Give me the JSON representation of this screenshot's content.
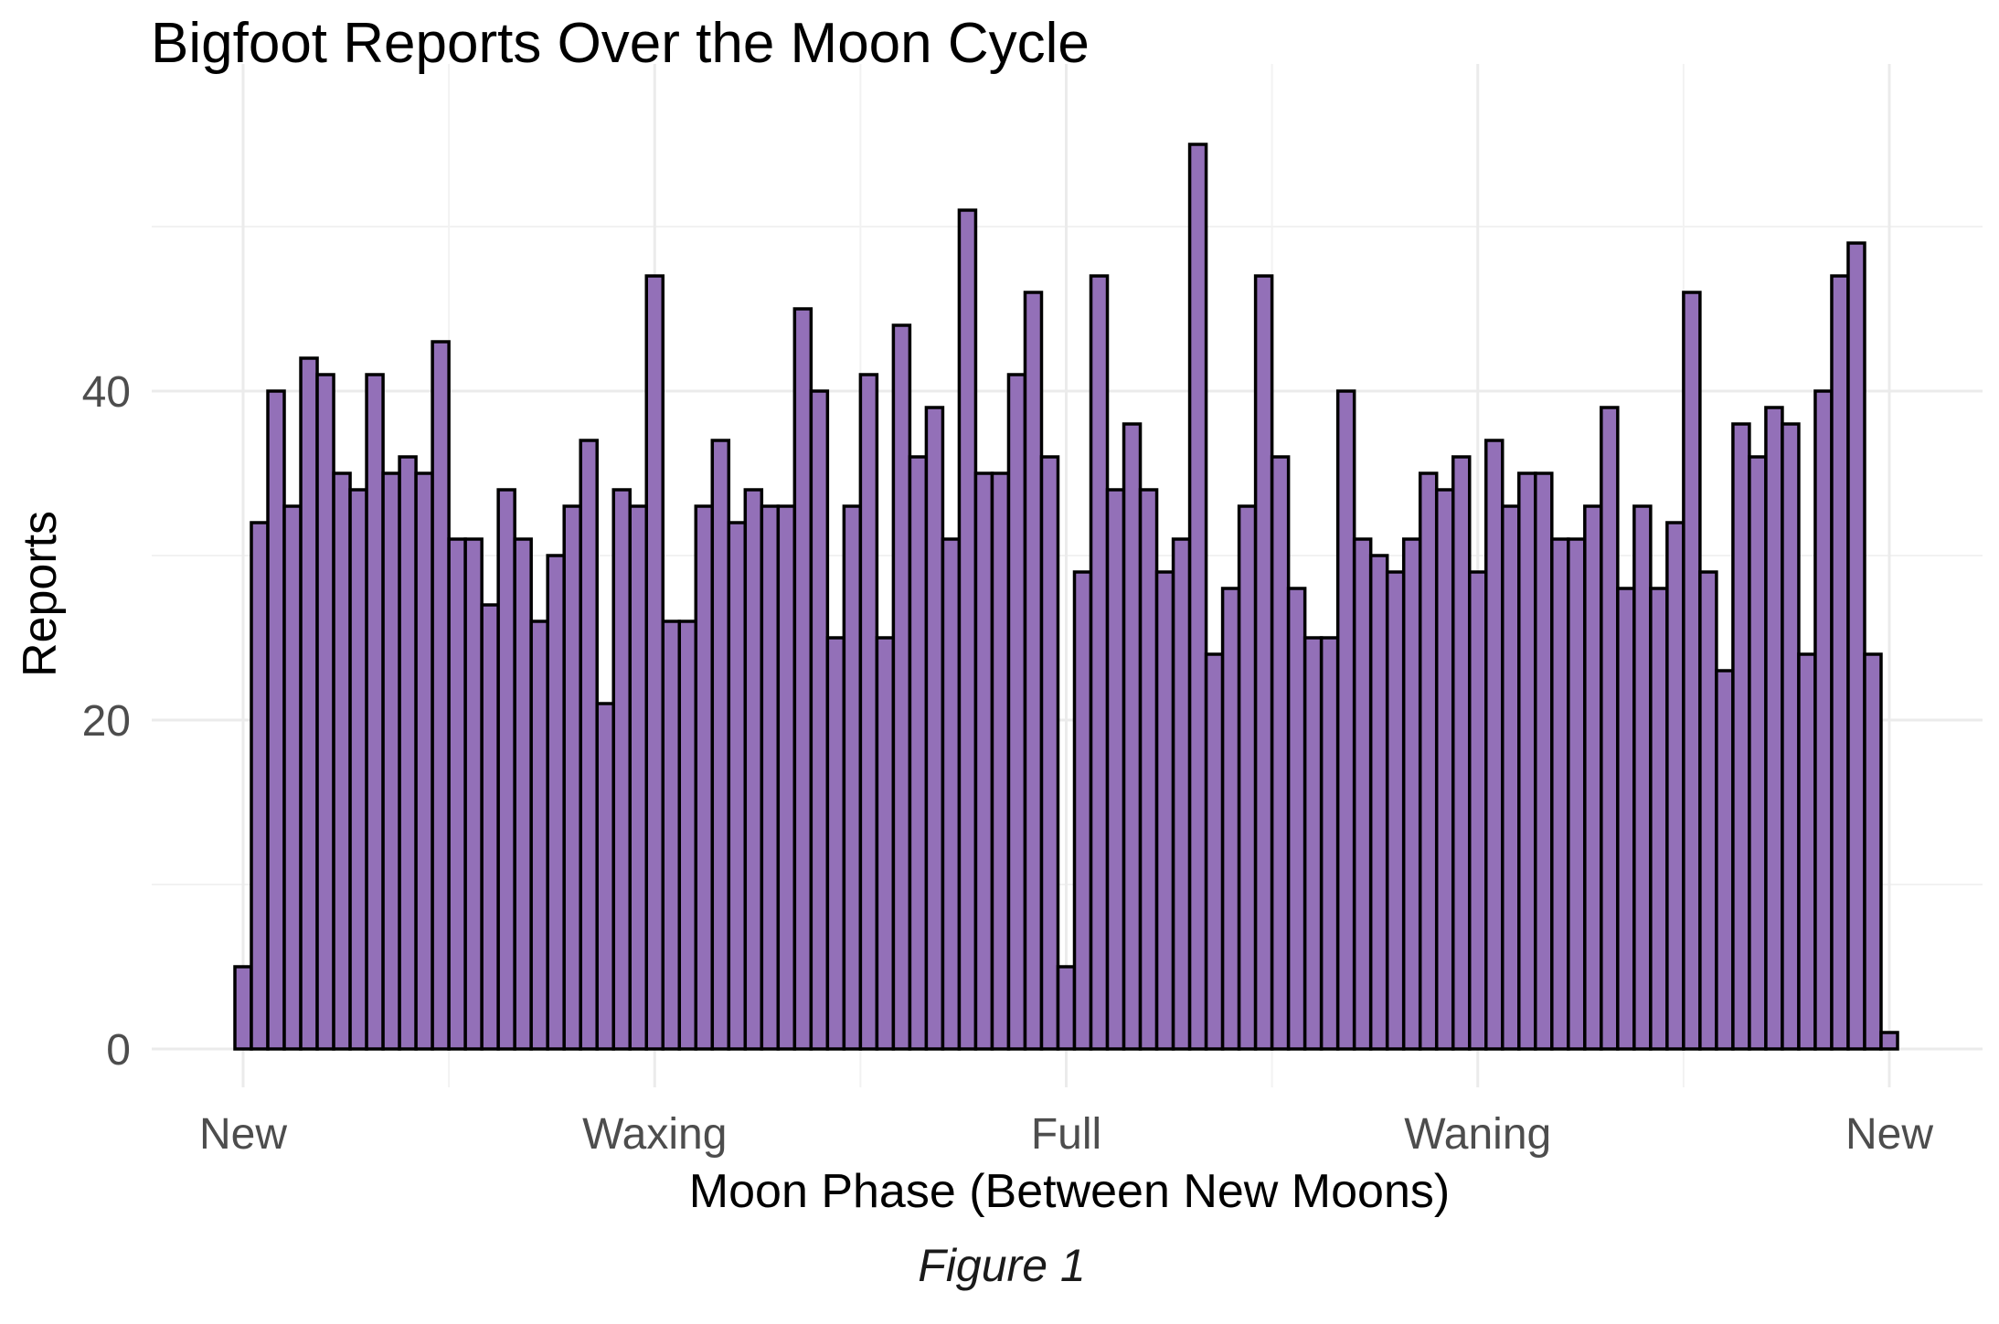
{
  "chart_data": {
    "type": "bar",
    "title": "Bigfoot Reports Over the Moon Cycle",
    "xlabel": "Moon Phase (Between New Moons)",
    "ylabel": "Reports",
    "caption": "Figure 1",
    "x_tick_labels": [
      "New",
      "Waxing",
      "Full",
      "Waning",
      "New"
    ],
    "x_tick_positions": [
      0,
      0.25,
      0.5,
      0.75,
      1.0
    ],
    "xlim": [
      -0.05,
      1.05
    ],
    "y_ticks": [
      0,
      20,
      40
    ],
    "ylim": [
      0,
      56
    ],
    "grid": true,
    "bar_color": "#9370B8",
    "bar_edge_color": "#000000",
    "bin_width": 0.01,
    "values": [
      5,
      32,
      40,
      33,
      42,
      41,
      35,
      34,
      41,
      35,
      36,
      35,
      43,
      31,
      31,
      27,
      34,
      31,
      26,
      30,
      33,
      37,
      21,
      34,
      33,
      47,
      26,
      26,
      33,
      37,
      32,
      34,
      33,
      33,
      45,
      40,
      25,
      33,
      41,
      25,
      44,
      36,
      39,
      31,
      51,
      35,
      35,
      41,
      46,
      36,
      5,
      29,
      47,
      34,
      38,
      34,
      29,
      31,
      55,
      24,
      28,
      33,
      47,
      36,
      28,
      25,
      25,
      40,
      31,
      30,
      29,
      31,
      35,
      34,
      36,
      29,
      37,
      33,
      35,
      35,
      31,
      31,
      33,
      39,
      28,
      33,
      28,
      32,
      46,
      29,
      23,
      38,
      36,
      39,
      38,
      24,
      40,
      47,
      49,
      24,
      1
    ]
  }
}
